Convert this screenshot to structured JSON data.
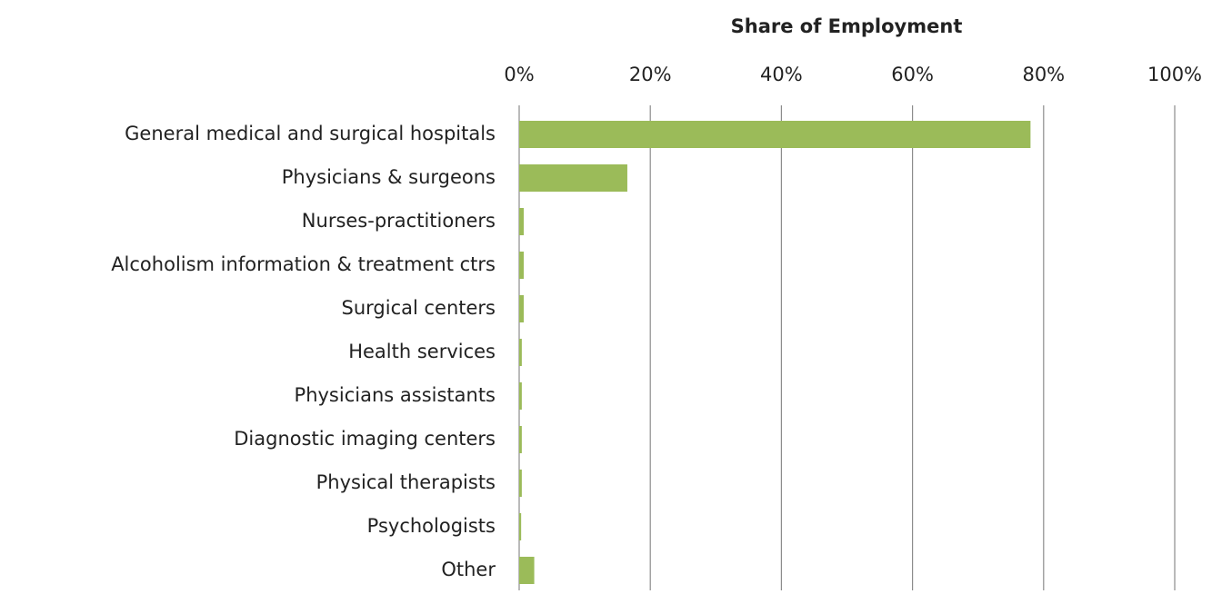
{
  "chart_data": {
    "type": "bar",
    "orientation": "horizontal",
    "xlabel": "Share of Employment",
    "categories": [
      "General medical and surgical hospitals",
      "Physicians & surgeons",
      "Nurses-practitioners",
      "Alcoholism information & treatment ctrs",
      "Surgical centers",
      "Health services",
      "Physicians assistants",
      "Diagnostic imaging centers",
      "Physical therapists",
      "Psychologists",
      "Other"
    ],
    "values": [
      78,
      16.5,
      0.7,
      0.7,
      0.7,
      0.4,
      0.4,
      0.4,
      0.4,
      0.3,
      2.3
    ],
    "color": "#9bbb59",
    "xlim": [
      0,
      100
    ],
    "xticks": [
      {
        "value": 0,
        "label": "0%"
      },
      {
        "value": 20,
        "label": "20%"
      },
      {
        "value": 40,
        "label": "40%"
      },
      {
        "value": 60,
        "label": "60%"
      },
      {
        "value": 80,
        "label": "80%"
      },
      {
        "value": 100,
        "label": "100%"
      }
    ],
    "grid": true
  }
}
